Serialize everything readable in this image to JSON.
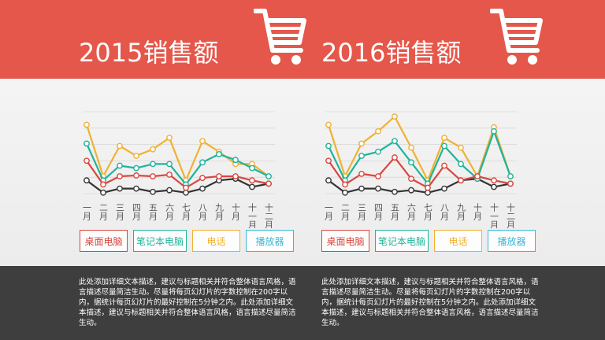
{
  "colors": {
    "header": "#e5574a",
    "footer": "#3e3e3e",
    "series": [
      "#d9473f",
      "#20b39a",
      "#f0b132",
      "#333333"
    ]
  },
  "legend_colors": [
    "#d9473f",
    "#20b39a",
    "#f0b132",
    "#3cb8d6"
  ],
  "panels": [
    {
      "title": "2015销售额",
      "cart_icon": "shopping-cart-icon",
      "legend": [
        "桌面电脑",
        "笔记本电脑",
        "电话",
        "播放器"
      ],
      "description": "此处添加详细文本描述，建议与标题相关并符合整体语言风格，语言描述尽量简洁生动。尽量将每页幻灯片的字数控制在200字以内，据统计每页幻灯片的最好控制在5分钟之内。此处添加详细文本描述，建议与标题相关并符合整体语言风格，语言描述尽量简洁生动。"
    },
    {
      "title": "2016销售额",
      "cart_icon": "shopping-cart-icon",
      "legend": [
        "桌面电脑",
        "笔记本电脑",
        "电话",
        "播放器"
      ],
      "description": "此处添加详细文本描述，建议与标题相关并符合整体语言风格，语言描述尽量简洁生动。尽量将每页幻灯片的字数控制在200字以内，据统计每页幻灯片的最好控制在5分钟之内。此处添加详细文本描述，建议与标题相关并符合整体语言风格，语言描述尽量简洁生动。"
    }
  ],
  "chart_data": [
    {
      "type": "line",
      "title": "2015销售额",
      "categories": [
        "一月",
        "二月",
        "三月",
        "四月",
        "五月",
        "六月",
        "七月",
        "八月",
        "九月",
        "十月",
        "十一月",
        "十二月"
      ],
      "ylim": [
        0,
        100
      ],
      "grid": true,
      "legend_position": "bottom",
      "series": [
        {
          "name": "桌面电脑",
          "values": [
            44,
            15,
            25,
            26,
            25,
            27,
            11,
            23,
            25,
            25,
            20,
            16
          ]
        },
        {
          "name": "笔记本电脑",
          "values": [
            65,
            20,
            38,
            35,
            40,
            40,
            15,
            42,
            52,
            45,
            35,
            25
          ]
        },
        {
          "name": "电话",
          "values": [
            88,
            25,
            62,
            50,
            58,
            72,
            20,
            68,
            55,
            40,
            40,
            25
          ]
        },
        {
          "name": "播放器",
          "values": [
            20,
            5,
            10,
            10,
            6,
            8,
            5,
            10,
            20,
            22,
            12,
            16
          ]
        }
      ]
    },
    {
      "type": "line",
      "title": "2016销售额",
      "categories": [
        "一月",
        "二月",
        "三月",
        "四月",
        "五月",
        "六月",
        "七月",
        "八月",
        "九月",
        "十月",
        "十一月",
        "十二月"
      ],
      "ylim": [
        0,
        100
      ],
      "grid": true,
      "legend_position": "bottom",
      "series": [
        {
          "name": "桌面电脑",
          "values": [
            44,
            15,
            28,
            25,
            48,
            22,
            11,
            38,
            20,
            25,
            20,
            16
          ]
        },
        {
          "name": "笔记本电脑",
          "values": [
            62,
            20,
            50,
            55,
            68,
            42,
            16,
            62,
            40,
            22,
            80,
            25
          ]
        },
        {
          "name": "电话",
          "values": [
            88,
            25,
            65,
            80,
            98,
            60,
            20,
            72,
            60,
            25,
            85,
            25
          ]
        },
        {
          "name": "播放器",
          "values": [
            20,
            5,
            10,
            10,
            6,
            8,
            5,
            10,
            20,
            22,
            12,
            16
          ]
        }
      ]
    }
  ]
}
